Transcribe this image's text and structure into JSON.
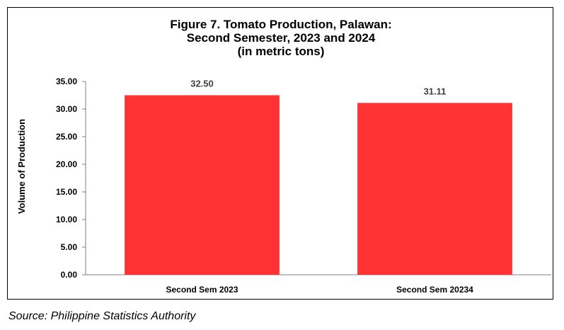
{
  "chart_data": {
    "type": "bar",
    "title_lines": [
      "Figure 7. Tomato Production, Palawan:",
      "Second Semester, 2023 and 2024",
      "(in metric tons)"
    ],
    "categories": [
      "Second Sem 2023",
      "Second Sem 20234"
    ],
    "values": [
      32.5,
      31.11
    ],
    "data_labels": [
      "32.50",
      "31.11"
    ],
    "xlabel": "",
    "ylabel": "Volume of Production",
    "ylim": [
      0,
      35
    ],
    "yticks": [
      "0.00",
      "5.00",
      "10.00",
      "15.00",
      "20.00",
      "25.00",
      "30.00",
      "35.00"
    ],
    "grid": false,
    "legend": "none",
    "bar_color": "#FF3333"
  },
  "source": "Source: Philippine Statistics Authority"
}
